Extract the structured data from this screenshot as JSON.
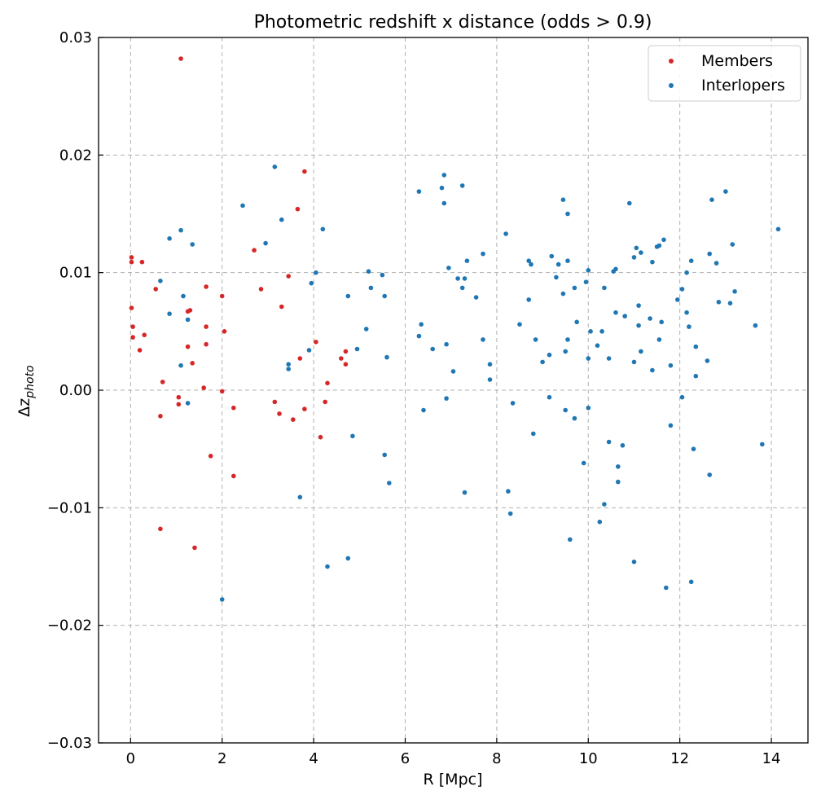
{
  "chart_data": {
    "type": "scatter",
    "title": "Photometric redshift x distance (odds > 0.9)",
    "xlabel": "R [Mpc]",
    "ylabel_main": "Δz",
    "ylabel_sub": "photo",
    "xlim": [
      -0.7,
      14.8
    ],
    "ylim": [
      -0.03,
      0.03
    ],
    "xticks": [
      0,
      2,
      4,
      6,
      8,
      10,
      12,
      14
    ],
    "xtick_labels": [
      "0",
      "2",
      "4",
      "6",
      "8",
      "10",
      "12",
      "14"
    ],
    "yticks": [
      -0.03,
      -0.02,
      -0.01,
      0.0,
      0.01,
      0.02,
      0.03
    ],
    "ytick_labels": [
      "−0.03",
      "−0.02",
      "−0.01",
      "0.00",
      "0.01",
      "0.02",
      "0.03"
    ],
    "grid": true,
    "legend_position": "top-right",
    "series": [
      {
        "name": "Members",
        "color": "#d62728",
        "points": [
          [
            0.02,
            0.0113
          ],
          [
            0.02,
            0.0109
          ],
          [
            0.25,
            0.0109
          ],
          [
            0.02,
            0.007
          ],
          [
            0.05,
            0.0054
          ],
          [
            0.05,
            0.0045
          ],
          [
            0.3,
            0.0047
          ],
          [
            0.2,
            0.0034
          ],
          [
            0.55,
            0.0086
          ],
          [
            0.7,
            0.0007
          ],
          [
            0.65,
            -0.0022
          ],
          [
            0.65,
            -0.0118
          ],
          [
            1.05,
            -0.0006
          ],
          [
            1.05,
            -0.0012
          ],
          [
            1.1,
            0.0282
          ],
          [
            1.25,
            0.0067
          ],
          [
            1.3,
            0.0068
          ],
          [
            1.25,
            0.0037
          ],
          [
            1.35,
            0.0023
          ],
          [
            1.4,
            -0.0134
          ],
          [
            1.6,
            0.0002
          ],
          [
            1.65,
            0.0088
          ],
          [
            1.65,
            0.0054
          ],
          [
            1.65,
            0.0039
          ],
          [
            1.75,
            -0.0056
          ],
          [
            2.0,
            0.008
          ],
          [
            2.05,
            0.005
          ],
          [
            2.0,
            -0.0001
          ],
          [
            2.25,
            -0.0015
          ],
          [
            2.25,
            -0.0073
          ],
          [
            2.7,
            0.0119
          ],
          [
            2.85,
            0.0086
          ],
          [
            3.15,
            -0.001
          ],
          [
            3.25,
            -0.002
          ],
          [
            3.3,
            0.0071
          ],
          [
            3.45,
            0.0097
          ],
          [
            3.55,
            -0.0025
          ],
          [
            3.65,
            0.0154
          ],
          [
            3.7,
            0.0027
          ],
          [
            3.8,
            0.0186
          ],
          [
            3.8,
            -0.0016
          ],
          [
            4.05,
            0.0041
          ],
          [
            4.15,
            -0.004
          ],
          [
            4.25,
            -0.001
          ],
          [
            4.3,
            0.0006
          ],
          [
            4.6,
            0.0027
          ],
          [
            4.7,
            0.0022
          ],
          [
            4.7,
            0.0033
          ]
        ]
      },
      {
        "name": "Interlopers",
        "color": "#1f77b4",
        "points": [
          [
            0.65,
            0.0093
          ],
          [
            0.85,
            0.0065
          ],
          [
            0.85,
            0.0129
          ],
          [
            1.1,
            0.0136
          ],
          [
            1.15,
            0.008
          ],
          [
            1.1,
            0.0021
          ],
          [
            1.25,
            0.006
          ],
          [
            1.35,
            0.0124
          ],
          [
            1.25,
            -0.0011
          ],
          [
            2.0,
            -0.0178
          ],
          [
            2.45,
            0.0157
          ],
          [
            2.95,
            0.0125
          ],
          [
            3.15,
            0.019
          ],
          [
            3.3,
            0.0145
          ],
          [
            3.45,
            0.0022
          ],
          [
            3.45,
            0.0018
          ],
          [
            3.7,
            -0.0091
          ],
          [
            3.9,
            0.0034
          ],
          [
            3.95,
            0.0091
          ],
          [
            4.05,
            0.01
          ],
          [
            4.2,
            0.0137
          ],
          [
            4.3,
            -0.015
          ],
          [
            4.75,
            0.008
          ],
          [
            4.75,
            -0.0143
          ],
          [
            4.85,
            -0.0039
          ],
          [
            4.95,
            0.0035
          ],
          [
            5.15,
            0.0052
          ],
          [
            5.2,
            0.0101
          ],
          [
            5.25,
            0.0087
          ],
          [
            5.5,
            0.0098
          ],
          [
            5.55,
            0.008
          ],
          [
            5.55,
            -0.0055
          ],
          [
            5.6,
            0.0028
          ],
          [
            5.65,
            -0.0079
          ],
          [
            6.3,
            0.0169
          ],
          [
            6.3,
            0.0046
          ],
          [
            6.35,
            0.0056
          ],
          [
            6.4,
            -0.0017
          ],
          [
            6.6,
            0.0035
          ],
          [
            6.8,
            0.0172
          ],
          [
            6.85,
            0.0183
          ],
          [
            6.85,
            0.0159
          ],
          [
            6.9,
            -0.0007
          ],
          [
            6.9,
            0.0039
          ],
          [
            6.95,
            0.0104
          ],
          [
            7.05,
            0.0016
          ],
          [
            7.15,
            0.0095
          ],
          [
            7.25,
            0.0174
          ],
          [
            7.25,
            0.0087
          ],
          [
            7.3,
            0.0095
          ],
          [
            7.3,
            -0.0087
          ],
          [
            7.35,
            0.011
          ],
          [
            7.55,
            0.0079
          ],
          [
            7.7,
            0.0116
          ],
          [
            7.7,
            0.0043
          ],
          [
            7.85,
            0.0022
          ],
          [
            7.85,
            0.0009
          ],
          [
            8.2,
            0.0133
          ],
          [
            8.25,
            -0.0086
          ],
          [
            8.3,
            -0.0105
          ],
          [
            8.35,
            -0.0011
          ],
          [
            8.5,
            0.0056
          ],
          [
            8.7,
            0.0077
          ],
          [
            8.7,
            0.011
          ],
          [
            8.75,
            0.0107
          ],
          [
            8.8,
            -0.0037
          ],
          [
            8.85,
            0.0043
          ],
          [
            9.0,
            0.0024
          ],
          [
            9.15,
            0.003
          ],
          [
            9.15,
            -0.0006
          ],
          [
            9.2,
            0.0114
          ],
          [
            9.3,
            0.0096
          ],
          [
            9.35,
            0.0107
          ],
          [
            9.45,
            0.0082
          ],
          [
            9.45,
            0.0162
          ],
          [
            9.5,
            0.0033
          ],
          [
            9.5,
            -0.0017
          ],
          [
            9.55,
            0.011
          ],
          [
            9.55,
            0.015
          ],
          [
            9.55,
            0.0043
          ],
          [
            9.6,
            -0.0127
          ],
          [
            9.7,
            0.0087
          ],
          [
            9.7,
            -0.0024
          ],
          [
            9.75,
            0.0058
          ],
          [
            9.9,
            -0.0062
          ],
          [
            9.95,
            0.0092
          ],
          [
            10.0,
            0.0102
          ],
          [
            10.0,
            0.0027
          ],
          [
            10.0,
            -0.0015
          ],
          [
            10.05,
            0.005
          ],
          [
            10.2,
            0.0038
          ],
          [
            10.25,
            -0.0112
          ],
          [
            10.3,
            0.005
          ],
          [
            10.35,
            0.0087
          ],
          [
            10.35,
            -0.0097
          ],
          [
            10.45,
            0.0027
          ],
          [
            10.45,
            -0.0044
          ],
          [
            10.55,
            0.0101
          ],
          [
            10.6,
            0.0103
          ],
          [
            10.6,
            0.0066
          ],
          [
            10.65,
            -0.0065
          ],
          [
            10.65,
            -0.0078
          ],
          [
            10.75,
            -0.0047
          ],
          [
            10.8,
            0.0063
          ],
          [
            10.9,
            0.0159
          ],
          [
            11.0,
            0.0113
          ],
          [
            11.0,
            0.0024
          ],
          [
            11.0,
            -0.0146
          ],
          [
            11.05,
            0.0121
          ],
          [
            11.1,
            0.0072
          ],
          [
            11.1,
            0.0055
          ],
          [
            11.15,
            0.0117
          ],
          [
            11.15,
            0.0033
          ],
          [
            11.35,
            0.0061
          ],
          [
            11.4,
            0.0109
          ],
          [
            11.4,
            0.0017
          ],
          [
            11.5,
            0.0122
          ],
          [
            11.55,
            0.0123
          ],
          [
            11.55,
            0.0043
          ],
          [
            11.6,
            0.0058
          ],
          [
            11.65,
            0.0128
          ],
          [
            11.7,
            -0.0168
          ],
          [
            11.8,
            0.0021
          ],
          [
            11.8,
            -0.003
          ],
          [
            11.95,
            0.0077
          ],
          [
            12.05,
            0.0086
          ],
          [
            12.05,
            -0.0006
          ],
          [
            12.15,
            0.01
          ],
          [
            12.15,
            0.0066
          ],
          [
            12.2,
            0.0054
          ],
          [
            12.25,
            0.011
          ],
          [
            12.25,
            -0.0163
          ],
          [
            12.3,
            -0.005
          ],
          [
            12.35,
            0.0012
          ],
          [
            12.35,
            0.0037
          ],
          [
            12.6,
            0.0025
          ],
          [
            12.65,
            0.0116
          ],
          [
            12.65,
            -0.0072
          ],
          [
            12.7,
            0.0162
          ],
          [
            12.8,
            0.0108
          ],
          [
            12.85,
            0.0075
          ],
          [
            13.0,
            0.0169
          ],
          [
            13.1,
            0.0074
          ],
          [
            13.15,
            0.0124
          ],
          [
            13.2,
            0.0084
          ],
          [
            13.65,
            0.0055
          ],
          [
            13.8,
            -0.0046
          ],
          [
            14.15,
            0.0137
          ]
        ]
      }
    ]
  }
}
